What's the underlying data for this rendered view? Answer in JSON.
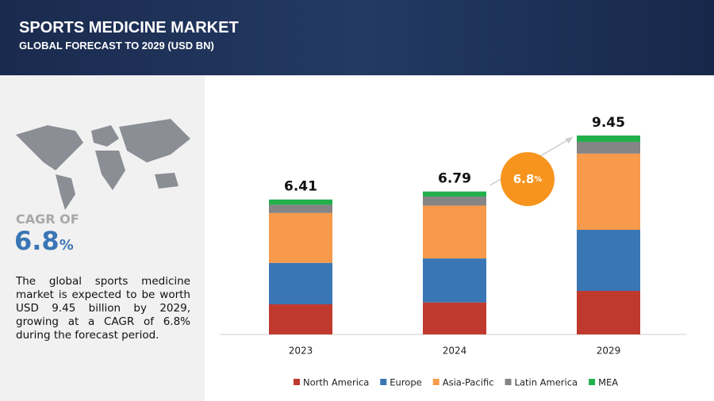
{
  "header": {
    "title": "SPORTS MEDICINE MARKET",
    "subtitle": "GLOBAL FORECAST TO 2029 (USD BN)"
  },
  "sidebar": {
    "cagr_label": "CAGR OF",
    "cagr_value": "6.8",
    "cagr_unit": "%",
    "description": "The global sports medicine market is expected to be worth USD 9.45 billion by 2029, growing at a CAGR of 6.8% during the forecast period."
  },
  "chart_data": {
    "type": "stacked_bar",
    "categories": [
      "2023",
      "2024",
      "2029"
    ],
    "series": [
      {
        "name": "North America",
        "color": "#c0392f",
        "values": [
          1.43,
          1.52,
          2.07
        ]
      },
      {
        "name": "Europe",
        "color": "#3a76b5",
        "values": [
          1.97,
          2.09,
          2.9
        ]
      },
      {
        "name": "Asia-Pacific",
        "color": "#f79a4b",
        "values": [
          2.37,
          2.51,
          3.62
        ]
      },
      {
        "name": "Latin America",
        "color": "#858585",
        "values": [
          0.39,
          0.43,
          0.56
        ]
      },
      {
        "name": "MEA",
        "color": "#22b04b",
        "values": [
          0.25,
          0.24,
          0.3
        ]
      }
    ],
    "totals": [
      6.41,
      6.79,
      9.45
    ],
    "legend": "bottom"
  }
}
